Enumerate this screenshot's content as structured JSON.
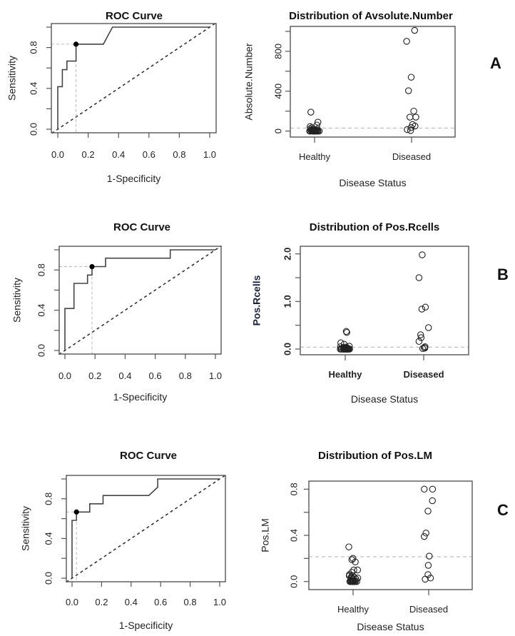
{
  "figure": {
    "panels": [
      {
        "label": "A"
      },
      {
        "label": "B"
      },
      {
        "label": "C"
      }
    ]
  },
  "chart_data": [
    {
      "id": "roc-a",
      "type": "line",
      "title": "ROC Curve",
      "xlabel": "1-Specificity",
      "ylabel": "Sensitivity",
      "xlim": [
        0,
        1
      ],
      "ylim": [
        0,
        1
      ],
      "xticks": [
        "0.0",
        "0.2",
        "0.4",
        "0.6",
        "0.8",
        "1.0"
      ],
      "xtick_values": [
        0,
        0.2,
        0.4,
        0.6,
        0.8,
        1.0
      ],
      "yticks": [
        "0.0",
        "0.4",
        "0.8"
      ],
      "ytick_values": [
        0,
        0.2,
        0.4,
        0.6,
        0.8,
        1.0
      ],
      "ytick_labeled": [
        0,
        0.4,
        0.8
      ],
      "series": [
        {
          "name": "ROC",
          "x": [
            0,
            0,
            0.03,
            0.03,
            0.06,
            0.06,
            0.12,
            0.12,
            0.3,
            0.36,
            1.0
          ],
          "y": [
            0,
            0.417,
            0.417,
            0.583,
            0.583,
            0.667,
            0.667,
            0.833,
            0.833,
            1.0,
            1.0
          ]
        },
        {
          "name": "chance",
          "x": [
            0,
            1
          ],
          "y": [
            0,
            1
          ],
          "style": "dashed"
        }
      ],
      "optimal_point": {
        "x": 0.12,
        "y": 0.833
      },
      "grid": false
    },
    {
      "id": "dist-a",
      "type": "scatter",
      "title": "Distribution of Avsolute.Number",
      "xlabel": "Disease Status",
      "ylabel": "Absolute.Number",
      "categories": [
        "Healthy",
        "Diseased"
      ],
      "ylim": [
        -60,
        1050
      ],
      "yticks": [
        "0",
        "400",
        "800"
      ],
      "ytick_values": [
        0,
        200,
        400,
        600,
        800,
        1000
      ],
      "ytick_labeled": [
        0,
        400,
        800
      ],
      "cutoff": 30,
      "series": [
        {
          "name": "Healthy",
          "values": [
            190,
            90,
            60,
            45,
            35,
            25,
            20,
            15,
            12,
            10,
            8,
            6,
            5,
            4,
            3,
            2,
            1,
            0,
            0,
            0,
            0,
            0,
            0,
            0,
            0,
            0,
            0,
            0,
            0,
            0,
            0,
            0,
            0
          ]
        },
        {
          "name": "Diseased",
          "values": [
            1010,
            900,
            540,
            405,
            200,
            140,
            140,
            65,
            50,
            35,
            15,
            5
          ]
        }
      ],
      "grid": false
    },
    {
      "id": "roc-b",
      "type": "line",
      "title": "ROC Curve",
      "xlabel": "1-Specificity",
      "ylabel": "Sensitivity",
      "xlim": [
        0,
        1
      ],
      "ylim": [
        0,
        1
      ],
      "xticks": [
        "0.0",
        "0.2",
        "0.4",
        "0.6",
        "0.8",
        "1.0"
      ],
      "xtick_values": [
        0,
        0.2,
        0.4,
        0.6,
        0.8,
        1.0
      ],
      "yticks": [
        "0.0",
        "0.4",
        "0.8"
      ],
      "ytick_values": [
        0,
        0.2,
        0.4,
        0.6,
        0.8,
        1.0
      ],
      "ytick_labeled": [
        0,
        0.4,
        0.8
      ],
      "series": [
        {
          "name": "ROC",
          "x": [
            0,
            0,
            0.06,
            0.06,
            0.15,
            0.15,
            0.18,
            0.18,
            0.27,
            0.27,
            0.7,
            0.7,
            1.0
          ],
          "y": [
            0,
            0.417,
            0.417,
            0.667,
            0.667,
            0.75,
            0.75,
            0.833,
            0.833,
            0.917,
            0.917,
            1.0,
            1.0
          ]
        },
        {
          "name": "chance",
          "x": [
            0,
            1
          ],
          "y": [
            0,
            1
          ],
          "style": "dashed"
        }
      ],
      "optimal_point": {
        "x": 0.18,
        "y": 0.833
      },
      "grid": false
    },
    {
      "id": "dist-b",
      "type": "scatter",
      "title": "Distribution of Pos.Rcells",
      "xlabel": "Disease Status",
      "ylabel": "Pos.Rcells",
      "categories": [
        "Healthy",
        "Diseased"
      ],
      "ylim": [
        -0.12,
        2.16
      ],
      "yticks": [
        "0.0",
        "1.0",
        "2.0"
      ],
      "ytick_values": [
        0,
        0.5,
        1.0,
        1.5,
        2.0
      ],
      "ytick_labeled": [
        0,
        1.0,
        2.0
      ],
      "cutoff": 0.04,
      "series": [
        {
          "name": "Healthy",
          "values": [
            0.37,
            0.35,
            0.13,
            0.1,
            0.06,
            0.05,
            0.04,
            0.03,
            0.03,
            0.02,
            0.02,
            0.01,
            0.01,
            0.01,
            0.0,
            0.0,
            0.0,
            0.0,
            0.0,
            0.0,
            0.0,
            0.0,
            0.0,
            0.0,
            0.0,
            0.0,
            0.0,
            0.0,
            0.0,
            0.0,
            0.0,
            0.0,
            0.0
          ]
        },
        {
          "name": "Diseased",
          "values": [
            1.98,
            1.5,
            0.88,
            0.84,
            0.45,
            0.3,
            0.24,
            0.16,
            0.05,
            0.03,
            0.02,
            0.01
          ]
        }
      ],
      "grid": false
    },
    {
      "id": "roc-c",
      "type": "line",
      "title": "ROC Curve",
      "xlabel": "1-Specificity",
      "ylabel": "Sensitivity",
      "xlim": [
        0,
        1
      ],
      "ylim": [
        0,
        1
      ],
      "xticks": [
        "0.0",
        "0.2",
        "0.4",
        "0.6",
        "0.8",
        "1.0"
      ],
      "xtick_values": [
        0,
        0.2,
        0.4,
        0.6,
        0.8,
        1.0
      ],
      "yticks": [
        "0.0",
        "0.4",
        "0.8"
      ],
      "ytick_values": [
        0,
        0.2,
        0.4,
        0.6,
        0.8,
        1.0
      ],
      "ytick_labeled": [
        0,
        0.4,
        0.8
      ],
      "series": [
        {
          "name": "ROC",
          "x": [
            0,
            0,
            0.03,
            0.03,
            0.12,
            0.12,
            0.21,
            0.21,
            0.52,
            0.58,
            0.58,
            1.0
          ],
          "y": [
            0,
            0.583,
            0.583,
            0.667,
            0.667,
            0.75,
            0.75,
            0.833,
            0.833,
            0.917,
            1.0,
            1.0
          ]
        },
        {
          "name": "chance",
          "x": [
            0,
            1
          ],
          "y": [
            0,
            1
          ],
          "style": "dashed"
        }
      ],
      "optimal_point": {
        "x": 0.03,
        "y": 0.667
      },
      "grid": false
    },
    {
      "id": "dist-c",
      "type": "scatter",
      "title": "Distribution of Pos.LM",
      "xlabel": "Disease Status",
      "ylabel": "Pos.LM",
      "categories": [
        "Healthy",
        "Diseased"
      ],
      "ylim": [
        -0.07,
        0.87
      ],
      "yticks": [
        "0.0",
        "0.4",
        "0.8"
      ],
      "ytick_values": [
        0,
        0.2,
        0.4,
        0.6,
        0.8
      ],
      "ytick_labeled": [
        0,
        0.4,
        0.8
      ],
      "cutoff": 0.215,
      "series": [
        {
          "name": "Healthy",
          "values": [
            0.3,
            0.2,
            0.19,
            0.17,
            0.1,
            0.1,
            0.08,
            0.06,
            0.05,
            0.05,
            0.04,
            0.04,
            0.03,
            0.03,
            0.03,
            0.02,
            0.02,
            0.02,
            0.01,
            0.01,
            0.01,
            0.0,
            0.0,
            0.0,
            0.0,
            0.0,
            0.0,
            0.0,
            0.0,
            0.0,
            0.0,
            0.0,
            0.0
          ]
        },
        {
          "name": "Diseased",
          "values": [
            0.8,
            0.8,
            0.7,
            0.61,
            0.42,
            0.39,
            0.22,
            0.14,
            0.06,
            0.03,
            0.02
          ]
        }
      ],
      "grid": false
    }
  ]
}
